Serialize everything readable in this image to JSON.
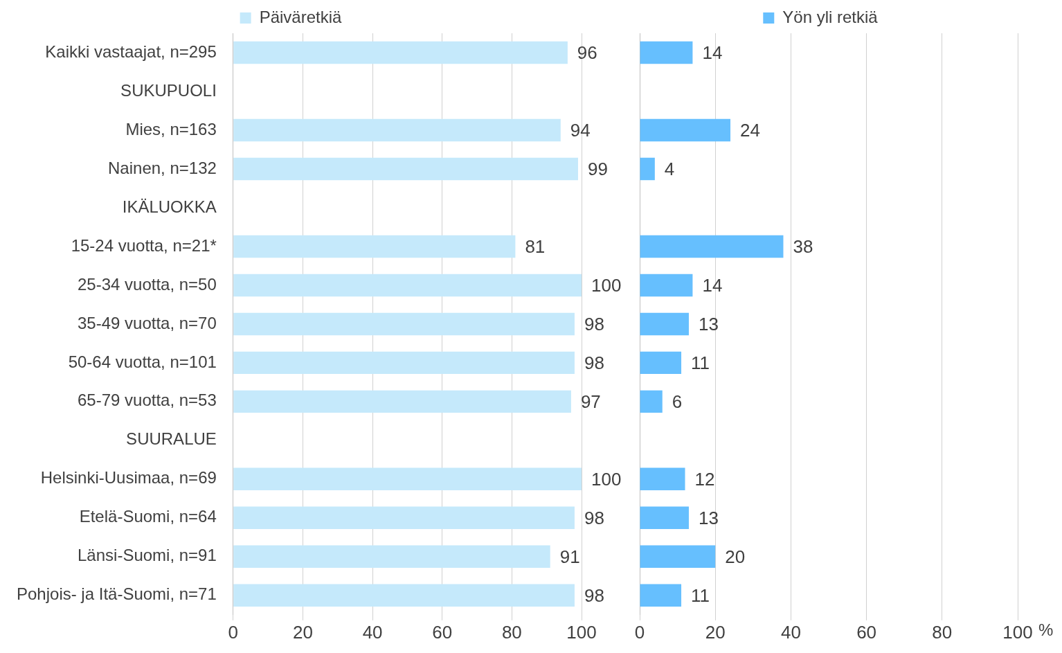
{
  "chart_data": [
    {
      "type": "bar",
      "orientation": "horizontal",
      "categories": [
        "Kaikki vastaajat, n=295",
        "SUKUPUOLI",
        "Mies, n=163",
        "Nainen, n=132",
        "IKÄLUOKKA",
        "15-24 vuotta, n=21*",
        "25-34 vuotta, n=50",
        "35-49 vuotta, n=70",
        "50-64 vuotta, n=101",
        "65-79 vuotta, n=53",
        "SUURALUE",
        "Helsinki-Uusimaa, n=69",
        "Etelä-Suomi, n=64",
        "Länsi-Suomi, n=91",
        "Pohjois- ja Itä-Suomi, n=71"
      ],
      "series": [
        {
          "name": "Päiväretkiä",
          "color": "#c5e9fb",
          "values": [
            96,
            null,
            94,
            99,
            null,
            81,
            100,
            98,
            98,
            97,
            null,
            100,
            98,
            91,
            98
          ]
        }
      ],
      "xlim": [
        0,
        100
      ],
      "xticks": [
        0,
        20,
        40,
        60,
        80,
        100
      ],
      "grid": "x",
      "legend": "top",
      "data_labels": true
    },
    {
      "type": "bar",
      "orientation": "horizontal",
      "categories": [
        null,
        null,
        null,
        null,
        null,
        null,
        null,
        null,
        null,
        null,
        null,
        null,
        null,
        null,
        null
      ],
      "series": [
        {
          "name": "Yön yli retkiä",
          "color": "#66bffe",
          "values": [
            14,
            null,
            24,
            4,
            null,
            38,
            14,
            13,
            11,
            6,
            null,
            12,
            13,
            20,
            11
          ]
        }
      ],
      "xlim": [
        0,
        100
      ],
      "xticks": [
        0,
        20,
        40,
        60,
        80,
        100
      ],
      "xlabel": "%",
      "grid": "x",
      "legend": "top",
      "data_labels": true,
      "tick_labels": "x"
    }
  ]
}
